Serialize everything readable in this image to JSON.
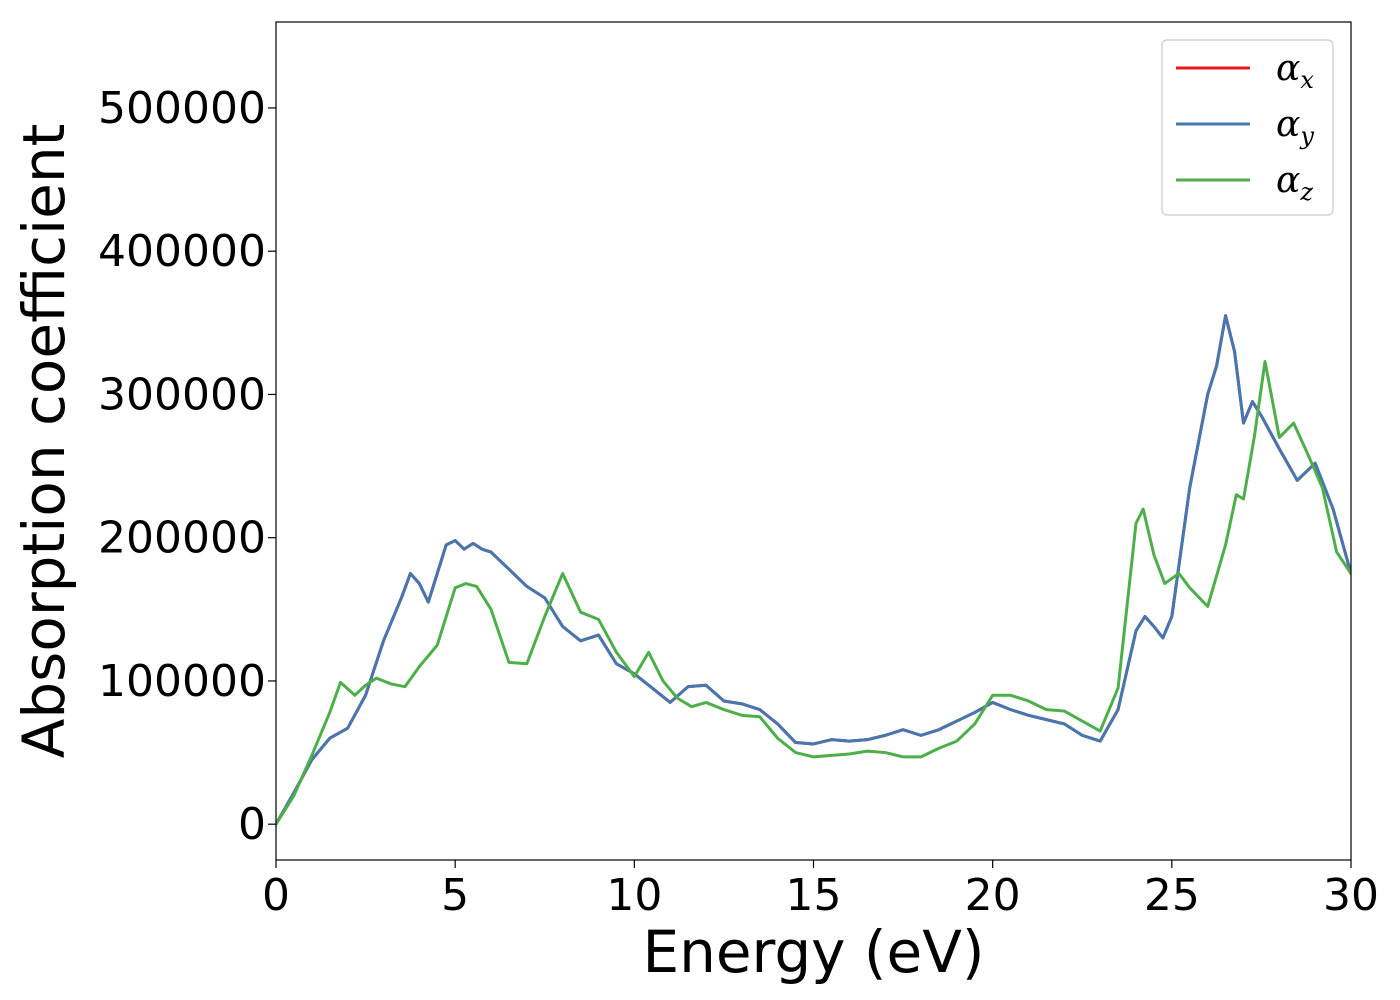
{
  "chart_data": {
    "type": "line",
    "xlabel": "Energy (eV)",
    "ylabel": "Absorption coefficient",
    "xlim": [
      0,
      30
    ],
    "ylim": [
      -25000,
      560000
    ],
    "xticks": [
      0,
      5,
      10,
      15,
      20,
      25,
      30
    ],
    "yticks": [
      0,
      100000,
      200000,
      300000,
      400000,
      500000
    ],
    "grid": false,
    "legend_position": "top-right",
    "series": [
      {
        "name": "α_x",
        "label_main": "α",
        "label_sub": "x",
        "color": "#e41a1c",
        "x": [
          0,
          0.5,
          1,
          1.5,
          2,
          2.5,
          3,
          3.5,
          3.75,
          4,
          4.25,
          4.5,
          4.75,
          5,
          5.25,
          5.5,
          5.75,
          6,
          6.5,
          7,
          7.5,
          8,
          8.5,
          9,
          9.5,
          10,
          10.5,
          11,
          11.5,
          12,
          12.5,
          13,
          13.5,
          14,
          14.5,
          15,
          15.5,
          16,
          16.5,
          17,
          17.5,
          18,
          18.5,
          19,
          19.5,
          20,
          20.5,
          21,
          21.5,
          22,
          22.5,
          23,
          23.5,
          24,
          24.25,
          24.5,
          24.75,
          25,
          25.5,
          26,
          26.25,
          26.5,
          26.75,
          27,
          27.25,
          27.5,
          28,
          28.5,
          29,
          29.5,
          30
        ],
        "y": [
          0,
          22000,
          45000,
          60000,
          67000,
          90000,
          128000,
          158000,
          175000,
          168000,
          155000,
          175000,
          195000,
          198000,
          192000,
          196000,
          192000,
          190000,
          178000,
          166000,
          158000,
          138000,
          128000,
          132000,
          112000,
          105000,
          95000,
          85000,
          96000,
          97000,
          86000,
          84000,
          80000,
          70000,
          57000,
          56000,
          59000,
          58000,
          59000,
          62000,
          66000,
          62000,
          66000,
          72000,
          78000,
          85000,
          80000,
          76000,
          73000,
          70000,
          62000,
          58000,
          80000,
          135000,
          145000,
          138000,
          130000,
          145000,
          235000,
          300000,
          320000,
          355000,
          330000,
          280000,
          295000,
          285000,
          262000,
          240000,
          252000,
          220000,
          175000
        ]
      },
      {
        "name": "α_y",
        "label_main": "α",
        "label_sub": "y",
        "color": "#4577b0",
        "x": [
          0,
          0.5,
          1,
          1.5,
          2,
          2.5,
          3,
          3.5,
          3.75,
          4,
          4.25,
          4.5,
          4.75,
          5,
          5.25,
          5.5,
          5.75,
          6,
          6.5,
          7,
          7.5,
          8,
          8.5,
          9,
          9.5,
          10,
          10.5,
          11,
          11.5,
          12,
          12.5,
          13,
          13.5,
          14,
          14.5,
          15,
          15.5,
          16,
          16.5,
          17,
          17.5,
          18,
          18.5,
          19,
          19.5,
          20,
          20.5,
          21,
          21.5,
          22,
          22.5,
          23,
          23.5,
          24,
          24.25,
          24.5,
          24.75,
          25,
          25.5,
          26,
          26.25,
          26.5,
          26.75,
          27,
          27.25,
          27.5,
          28,
          28.5,
          29,
          29.5,
          30
        ],
        "y": [
          0,
          22000,
          45000,
          60000,
          67000,
          90000,
          128000,
          158000,
          175000,
          168000,
          155000,
          175000,
          195000,
          198000,
          192000,
          196000,
          192000,
          190000,
          178000,
          166000,
          158000,
          138000,
          128000,
          132000,
          112000,
          105000,
          95000,
          85000,
          96000,
          97000,
          86000,
          84000,
          80000,
          70000,
          57000,
          56000,
          59000,
          58000,
          59000,
          62000,
          66000,
          62000,
          66000,
          72000,
          78000,
          85000,
          80000,
          76000,
          73000,
          70000,
          62000,
          58000,
          80000,
          135000,
          145000,
          138000,
          130000,
          145000,
          235000,
          300000,
          320000,
          355000,
          330000,
          280000,
          295000,
          285000,
          262000,
          240000,
          252000,
          220000,
          175000
        ]
      },
      {
        "name": "α_z",
        "label_main": "α",
        "label_sub": "z",
        "color": "#4daf4a",
        "x": [
          0,
          0.5,
          1,
          1.5,
          1.8,
          2.2,
          2.5,
          2.8,
          3.2,
          3.6,
          4,
          4.5,
          5,
          5.3,
          5.6,
          6,
          6.5,
          7,
          7.5,
          8,
          8.5,
          9,
          9.5,
          10,
          10.4,
          10.8,
          11.2,
          11.6,
          12,
          12.5,
          13,
          13.5,
          14,
          14.5,
          15,
          15.5,
          16,
          16.5,
          17,
          17.5,
          18,
          18.5,
          19,
          19.5,
          20,
          20.5,
          21,
          21.5,
          22,
          22.5,
          23,
          23.5,
          24,
          24.2,
          24.5,
          24.8,
          25.2,
          25.5,
          26,
          26.5,
          26.8,
          27,
          27.3,
          27.6,
          28,
          28.4,
          28.8,
          29.2,
          29.6,
          30
        ],
        "y": [
          0,
          20000,
          48000,
          78000,
          99000,
          90000,
          97000,
          102000,
          98000,
          96000,
          110000,
          125000,
          165000,
          168000,
          166000,
          150000,
          113000,
          112000,
          145000,
          175000,
          148000,
          143000,
          120000,
          103000,
          120000,
          100000,
          88000,
          82000,
          85000,
          80000,
          76000,
          75000,
          60000,
          50000,
          47000,
          48000,
          49000,
          51000,
          50000,
          47000,
          47000,
          53000,
          58000,
          70000,
          90000,
          90000,
          86000,
          80000,
          79000,
          72000,
          65000,
          95000,
          210000,
          220000,
          188000,
          168000,
          175000,
          165000,
          152000,
          195000,
          230000,
          227000,
          270000,
          323000,
          270000,
          280000,
          258000,
          235000,
          190000,
          175000
        ]
      }
    ]
  }
}
